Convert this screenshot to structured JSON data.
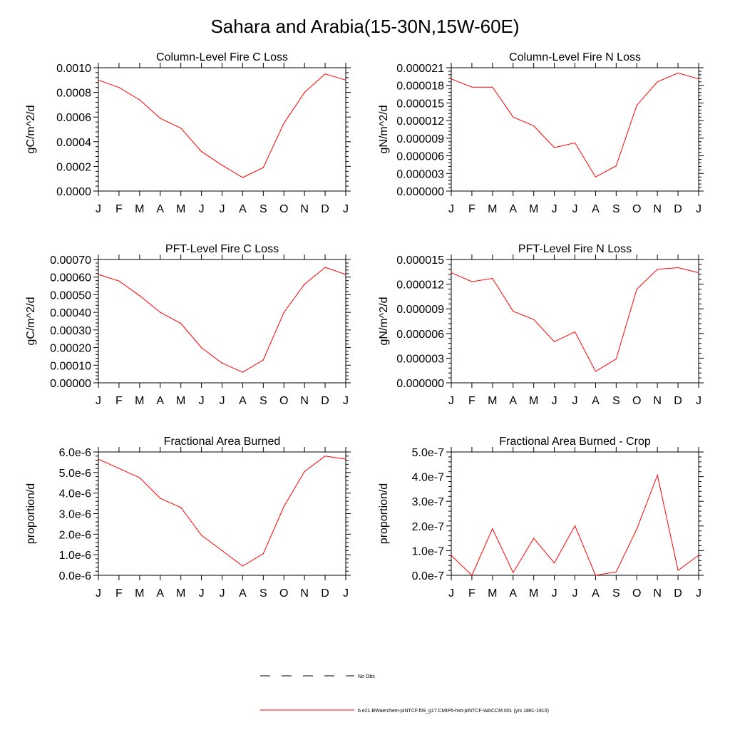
{
  "title": "Sahara and Arabia(15-30N,15W-60E)",
  "colors": {
    "series": "#ff0000",
    "axes": "#000000",
    "obs": "#000000"
  },
  "legend": [
    {
      "style": "dashed",
      "color": "#000000",
      "label": "No Obs"
    },
    {
      "style": "solid",
      "color": "#ff0000",
      "label": "b.e21.BWaerchem-piNTCF.f09_g17.CMIP6-hist-piNTCF-WACCM.001 (yrs 1881-1910)"
    }
  ],
  "chart_data": [
    {
      "type": "line",
      "title": "Column-Level Fire C Loss",
      "ylabel": "gC/m^2/d",
      "categories": [
        "J",
        "F",
        "M",
        "A",
        "M",
        "J",
        "J",
        "A",
        "S",
        "O",
        "N",
        "D",
        "J"
      ],
      "ylim": [
        0,
        0.001
      ],
      "yticks": [
        0,
        0.0002,
        0.0004,
        0.0006,
        0.0008,
        0.001
      ],
      "yticklabels": [
        "0.0000",
        "0.0002",
        "0.0004",
        "0.0006",
        "0.0008",
        "0.0010"
      ],
      "series": [
        {
          "values": [
            0.0009,
            0.00084,
            0.00074,
            0.00059,
            0.00051,
            0.00032,
            0.00021,
            0.00011,
            0.00019,
            0.00055,
            0.0008,
            0.00095,
            0.0009
          ]
        }
      ]
    },
    {
      "type": "line",
      "title": "Column-Level Fire N Loss",
      "ylabel": "gN/m^2/d",
      "categories": [
        "J",
        "F",
        "M",
        "A",
        "M",
        "J",
        "J",
        "A",
        "S",
        "O",
        "N",
        "D",
        "J"
      ],
      "ylim": [
        0,
        2.1e-05
      ],
      "yticks": [
        0,
        3e-06,
        6e-06,
        9e-06,
        1.2e-05,
        1.5e-05,
        1.8e-05,
        2.1e-05
      ],
      "yticklabels": [
        "0.000000",
        "0.000003",
        "0.000006",
        "0.000009",
        "0.000012",
        "0.000015",
        "0.000018",
        "0.000021"
      ],
      "series": [
        {
          "values": [
            1.91e-05,
            1.77e-05,
            1.77e-05,
            1.26e-05,
            1.11e-05,
            7.4e-06,
            8.2e-06,
            2.4e-06,
            4.3e-06,
            1.46e-05,
            1.86e-05,
            2.01e-05,
            1.91e-05
          ]
        }
      ]
    },
    {
      "type": "line",
      "title": "PFT-Level Fire C Loss",
      "ylabel": "gC/m^2/d",
      "categories": [
        "J",
        "F",
        "M",
        "A",
        "M",
        "J",
        "J",
        "A",
        "S",
        "O",
        "N",
        "D",
        "J"
      ],
      "ylim": [
        0,
        0.0007
      ],
      "yticks": [
        0,
        0.0001,
        0.0002,
        0.0003,
        0.0004,
        0.0005,
        0.0006,
        0.0007
      ],
      "yticklabels": [
        "0.00000",
        "0.00010",
        "0.00020",
        "0.00030",
        "0.00040",
        "0.00050",
        "0.00060",
        "0.00070"
      ],
      "series": [
        {
          "values": [
            0.000615,
            0.000578,
            0.000495,
            0.0004,
            0.000337,
            0.0002,
            0.000112,
            6e-05,
            0.00013,
            0.0004,
            0.00056,
            0.000655,
            0.000615
          ]
        }
      ]
    },
    {
      "type": "line",
      "title": "PFT-Level Fire N Loss",
      "ylabel": "gN/m^2/d",
      "categories": [
        "J",
        "F",
        "M",
        "A",
        "M",
        "J",
        "J",
        "A",
        "S",
        "O",
        "N",
        "D",
        "J"
      ],
      "ylim": [
        0,
        1.5e-05
      ],
      "yticks": [
        0,
        3e-06,
        6e-06,
        9e-06,
        1.2e-05,
        1.5e-05
      ],
      "yticklabels": [
        "0.000000",
        "0.000003",
        "0.000006",
        "0.000009",
        "0.000012",
        "0.000015"
      ],
      "series": [
        {
          "values": [
            1.34e-05,
            1.23e-05,
            1.27e-05,
            8.7e-06,
            7.7e-06,
            5e-06,
            6.2e-06,
            1.4e-06,
            2.9e-06,
            1.14e-05,
            1.38e-05,
            1.4e-05,
            1.34e-05
          ]
        }
      ]
    },
    {
      "type": "line",
      "title": "Fractional Area Burned",
      "ylabel": "proportion/d",
      "categories": [
        "J",
        "F",
        "M",
        "A",
        "M",
        "J",
        "J",
        "A",
        "S",
        "O",
        "N",
        "D",
        "J"
      ],
      "ylim": [
        0,
        6e-06
      ],
      "yticks": [
        0,
        1e-06,
        2e-06,
        3e-06,
        4e-06,
        5e-06,
        6e-06
      ],
      "yticklabels": [
        "0.0e-6",
        "1.0e-6",
        "2.0e-6",
        "3.0e-6",
        "4.0e-6",
        "5.0e-6",
        "6.0e-6"
      ],
      "series": [
        {
          "values": [
            5.65e-06,
            5.2e-06,
            4.75e-06,
            3.75e-06,
            3.3e-06,
            1.95e-06,
            1.2e-06,
            4.5e-07,
            1.05e-06,
            3.35e-06,
            5.05e-06,
            5.8e-06,
            5.65e-06
          ]
        }
      ]
    },
    {
      "type": "line",
      "title": "Fractional Area Burned - Crop",
      "ylabel": "proportion/d",
      "categories": [
        "J",
        "F",
        "M",
        "A",
        "M",
        "J",
        "J",
        "A",
        "S",
        "O",
        "N",
        "D",
        "J"
      ],
      "ylim": [
        0,
        5e-07
      ],
      "yticks": [
        0,
        1e-07,
        2e-07,
        3e-07,
        4e-07,
        5e-07
      ],
      "yticklabels": [
        "0.0e-7",
        "1.0e-7",
        "2.0e-7",
        "3.0e-7",
        "4.0e-7",
        "5.0e-7"
      ],
      "series": [
        {
          "values": [
            8.1e-08,
            0.0,
            1.89e-07,
            1.1e-08,
            1.5e-07,
            5e-08,
            2.01e-07,
            0.0,
            1.4e-08,
            1.88e-07,
            4.06e-07,
            2e-08,
            8.1e-08
          ]
        }
      ]
    }
  ]
}
